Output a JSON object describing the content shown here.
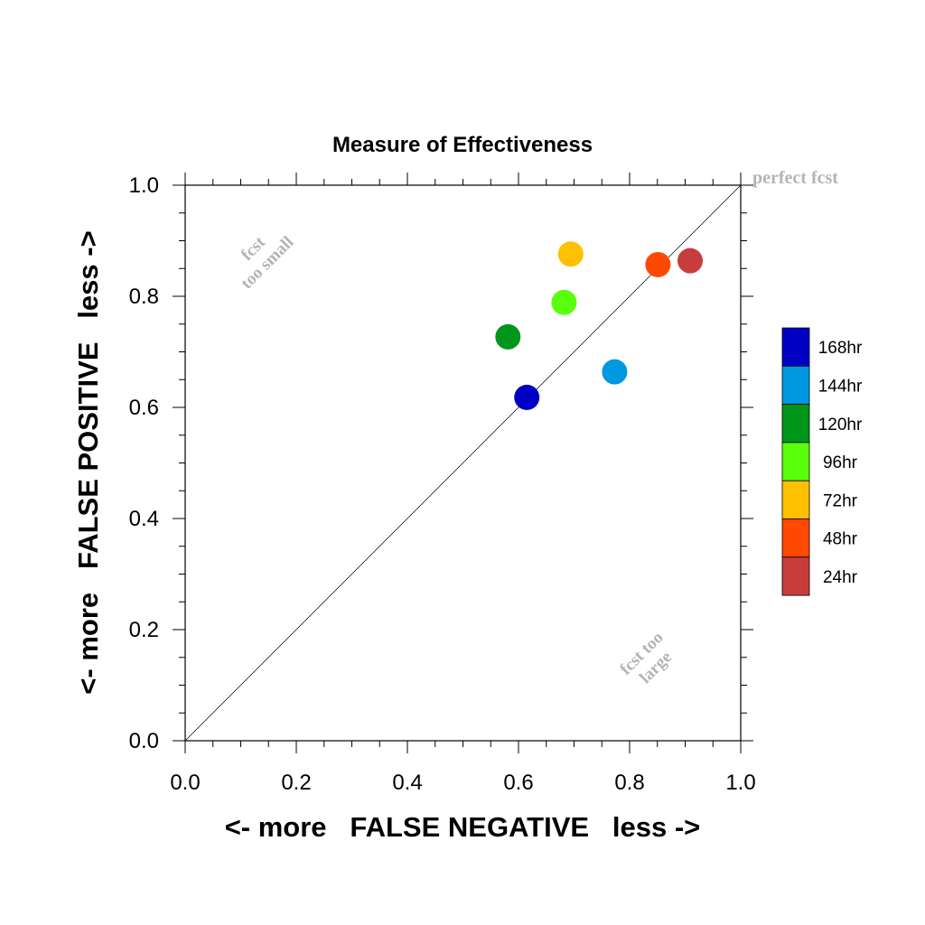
{
  "chart_data": {
    "type": "scatter",
    "title": "Measure of Effectiveness",
    "xlabel": "<- more   FALSE NEGATIVE   less ->",
    "ylabel": "<- more   FALSE POSITIVE   less ->",
    "xlim": [
      0.0,
      1.0
    ],
    "ylim": [
      0.0,
      1.0
    ],
    "xticks": [
      "0.0",
      "0.2",
      "0.4",
      "0.6",
      "0.8",
      "1.0"
    ],
    "yticks": [
      "0.0",
      "0.2",
      "0.4",
      "0.6",
      "0.8",
      "1.0"
    ],
    "grid": false,
    "reference_line": "diagonal y = x",
    "annotations": {
      "perfect": "perfect fcst",
      "small_line1": "fcst",
      "small_line2": "too small",
      "large_line1": "fcst too",
      "large_line2": "large"
    },
    "points": [
      {
        "label": "168hr",
        "x": 0.615,
        "y": 0.618,
        "color": "#0000c4"
      },
      {
        "label": "144hr",
        "x": 0.773,
        "y": 0.664,
        "color": "#0098e0"
      },
      {
        "label": "120hr",
        "x": 0.581,
        "y": 0.727,
        "color": "#00961a"
      },
      {
        "label": "96hr",
        "x": 0.682,
        "y": 0.789,
        "color": "#5aff0c"
      },
      {
        "label": "72hr",
        "x": 0.694,
        "y": 0.876,
        "color": "#ffc000"
      },
      {
        "label": "48hr",
        "x": 0.851,
        "y": 0.857,
        "color": "#ff4800"
      },
      {
        "label": "24hr",
        "x": 0.909,
        "y": 0.864,
        "color": "#c83c3c"
      }
    ],
    "legend": {
      "placement": "right",
      "entries": [
        {
          "label": "168hr",
          "color": "#0000c4"
        },
        {
          "label": "144hr",
          "color": "#0098e0"
        },
        {
          "label": "120hr",
          "color": "#00961a"
        },
        {
          "label": "96hr",
          "color": "#5aff0c"
        },
        {
          "label": "72hr",
          "color": "#ffc000"
        },
        {
          "label": "48hr",
          "color": "#ff4800"
        },
        {
          "label": "24hr",
          "color": "#c83c3c"
        }
      ]
    },
    "annotation_color": "#b4b4b4"
  }
}
